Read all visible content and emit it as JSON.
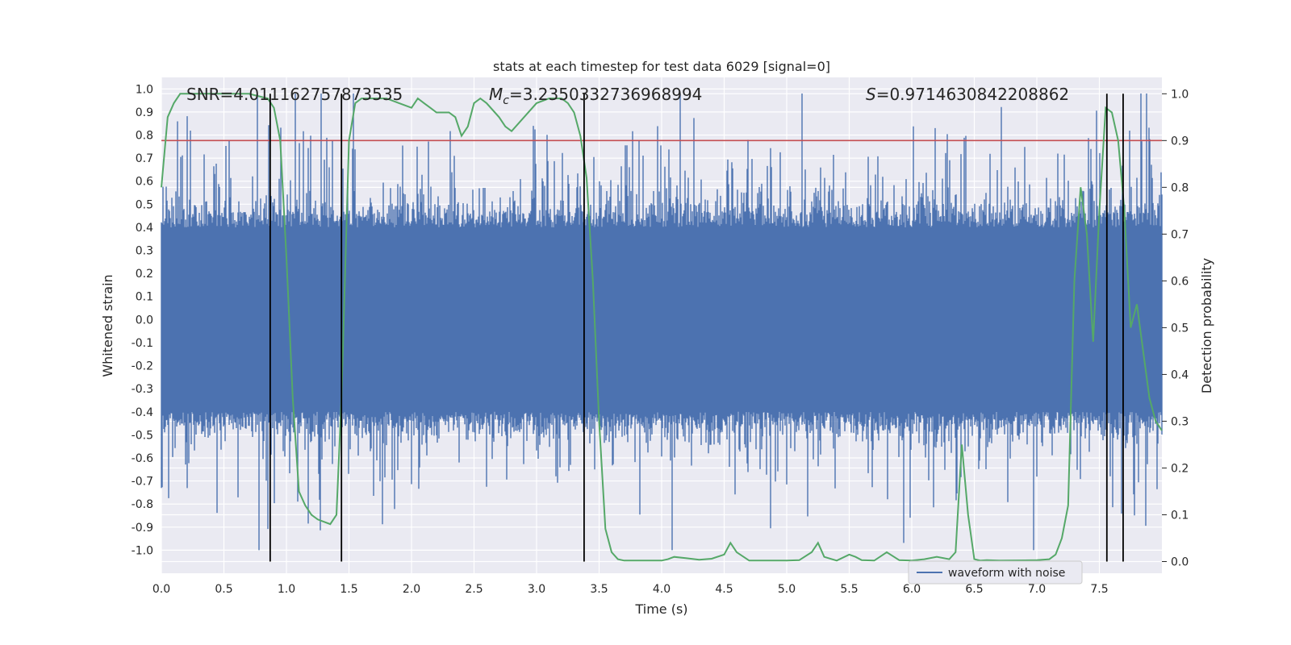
{
  "chart_data": {
    "type": "line",
    "title": "stats at each timestep for test data 6029 [signal=0]",
    "xlabel": "Time (s)",
    "ylabel_left": "Whitened strain",
    "ylabel_right": "Detection probability",
    "xlim": [
      0.0,
      8.0
    ],
    "ylim_left": [
      -1.1,
      1.05
    ],
    "ylim_right": [
      -0.025,
      1.035
    ],
    "grid": true,
    "x_ticks": [
      "0.0",
      "0.5",
      "1.0",
      "1.5",
      "2.0",
      "2.5",
      "3.0",
      "3.5",
      "4.0",
      "4.5",
      "5.0",
      "5.5",
      "6.0",
      "6.5",
      "7.0",
      "7.5"
    ],
    "y_left_ticks": [
      "1.0",
      "0.9",
      "0.8",
      "0.7",
      "0.6",
      "0.5",
      "0.4",
      "0.3",
      "0.2",
      "0.1",
      "0.0",
      "-0.1",
      "-0.2",
      "-0.3",
      "-0.4",
      "-0.5",
      "-0.6",
      "-0.7",
      "-0.8",
      "-0.9",
      "-1.0"
    ],
    "y_right_ticks": [
      "1.0",
      "0.9",
      "0.8",
      "0.7",
      "0.6",
      "0.5",
      "0.4",
      "0.3",
      "0.2",
      "0.1",
      "0.0"
    ],
    "annotations": {
      "snr": "SNR=4.011162757873535",
      "mc_symbol": "M",
      "mc_sub": "c",
      "mc_value": "=3.2350332736968994",
      "s_symbol": "S",
      "s_value": "=0.9714630842208862"
    },
    "threshold": {
      "value_right": 0.9,
      "color": "#c44e52"
    },
    "vertical_lines_x": [
      0.87,
      1.44,
      3.38,
      7.56,
      7.69
    ],
    "legend": {
      "label": "waveform with noise",
      "location": "lower right"
    },
    "waveform_series": {
      "name": "waveform with noise",
      "color": "#4c72b0",
      "x_range": [
        0.0,
        8.0
      ],
      "typical_envelope": 0.4,
      "max_abs": 1.0
    },
    "probability_series": {
      "name": "Detection probability",
      "color": "#55a868",
      "x": [
        0.0,
        0.05,
        0.1,
        0.15,
        0.2,
        0.3,
        0.5,
        0.7,
        0.85,
        0.9,
        0.95,
        1.0,
        1.05,
        1.1,
        1.15,
        1.2,
        1.25,
        1.3,
        1.35,
        1.4,
        1.44,
        1.5,
        1.55,
        1.6,
        1.7,
        1.8,
        1.9,
        2.0,
        2.05,
        2.1,
        2.15,
        2.2,
        2.3,
        2.35,
        2.4,
        2.45,
        2.5,
        2.55,
        2.6,
        2.7,
        2.75,
        2.8,
        2.9,
        3.0,
        3.1,
        3.2,
        3.25,
        3.3,
        3.35,
        3.4,
        3.45,
        3.5,
        3.55,
        3.6,
        3.65,
        3.7,
        3.8,
        4.0,
        4.05,
        4.1,
        4.2,
        4.3,
        4.4,
        4.5,
        4.55,
        4.6,
        4.7,
        4.8,
        5.0,
        5.1,
        5.2,
        5.25,
        5.3,
        5.4,
        5.5,
        5.55,
        5.6,
        5.7,
        5.8,
        5.9,
        6.0,
        6.1,
        6.2,
        6.3,
        6.35,
        6.4,
        6.45,
        6.5,
        6.55,
        6.6,
        6.7,
        7.0,
        7.1,
        7.15,
        7.2,
        7.25,
        7.3,
        7.35,
        7.4,
        7.45,
        7.5,
        7.55,
        7.6,
        7.65,
        7.7,
        7.75,
        7.8,
        7.9,
        7.95,
        8.0
      ],
      "y": [
        0.8,
        0.95,
        0.98,
        1.0,
        1.0,
        1.0,
        1.0,
        1.0,
        0.99,
        0.97,
        0.9,
        0.65,
        0.35,
        0.15,
        0.12,
        0.1,
        0.09,
        0.085,
        0.08,
        0.1,
        0.35,
        0.9,
        0.98,
        0.99,
        0.99,
        0.99,
        0.98,
        0.97,
        0.99,
        0.98,
        0.97,
        0.96,
        0.96,
        0.95,
        0.91,
        0.93,
        0.98,
        0.99,
        0.98,
        0.95,
        0.93,
        0.92,
        0.95,
        0.98,
        0.99,
        0.99,
        0.98,
        0.96,
        0.91,
        0.82,
        0.6,
        0.3,
        0.07,
        0.02,
        0.005,
        0.002,
        0.002,
        0.002,
        0.005,
        0.01,
        0.007,
        0.004,
        0.006,
        0.015,
        0.04,
        0.02,
        0.002,
        0.002,
        0.002,
        0.003,
        0.02,
        0.04,
        0.01,
        0.002,
        0.015,
        0.01,
        0.003,
        0.002,
        0.02,
        0.003,
        0.002,
        0.005,
        0.01,
        0.005,
        0.02,
        0.25,
        0.1,
        0.005,
        0.002,
        0.003,
        0.002,
        0.003,
        0.005,
        0.015,
        0.05,
        0.12,
        0.6,
        0.8,
        0.7,
        0.47,
        0.75,
        0.97,
        0.96,
        0.9,
        0.75,
        0.5,
        0.55,
        0.35,
        0.3,
        0.28
      ]
    }
  }
}
